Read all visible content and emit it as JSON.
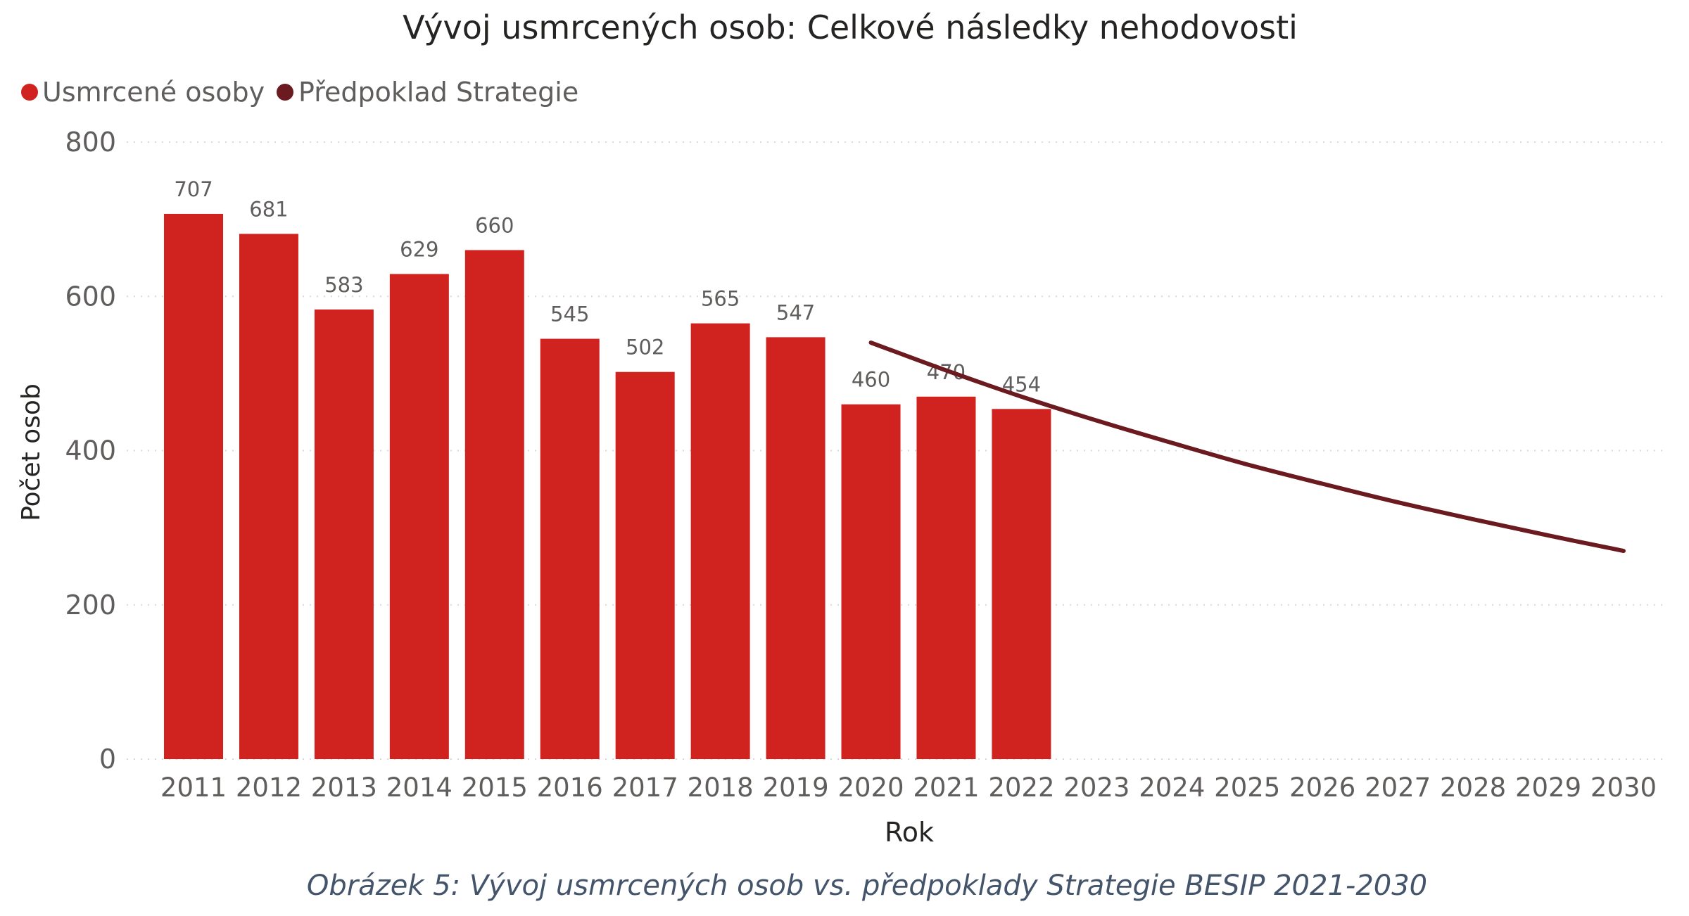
{
  "chart_data": {
    "type": "bar",
    "title": "Vývoj usmrcených osob: Celkové následky nehodovosti",
    "xlabel": "Rok",
    "ylabel": "Počet osob",
    "ylim": [
      0,
      800
    ],
    "yticks": [
      0,
      200,
      400,
      600,
      800
    ],
    "grid": true,
    "legend_position": "top-left",
    "categories": [
      "2011",
      "2012",
      "2013",
      "2014",
      "2015",
      "2016",
      "2017",
      "2018",
      "2019",
      "2020",
      "2021",
      "2022",
      "2023",
      "2024",
      "2025",
      "2026",
      "2027",
      "2028",
      "2029",
      "2030"
    ],
    "series": [
      {
        "name": "Usmrcené osoby",
        "type": "bar",
        "color": "#d0221f",
        "values": [
          707,
          681,
          583,
          629,
          660,
          545,
          502,
          565,
          547,
          460,
          470,
          454,
          null,
          null,
          null,
          null,
          null,
          null,
          null,
          null
        ]
      },
      {
        "name": "Předpoklad Strategie",
        "type": "line",
        "color": "#6b1a1f",
        "values": [
          null,
          null,
          null,
          null,
          null,
          null,
          null,
          null,
          null,
          540,
          504,
          470,
          439,
          410,
          382,
          357,
          333,
          311,
          290,
          270
        ]
      }
    ]
  },
  "caption": "Obrázek 5: Vývoj usmrcených osob vs. předpoklady Strategie BESIP 2021-2030"
}
